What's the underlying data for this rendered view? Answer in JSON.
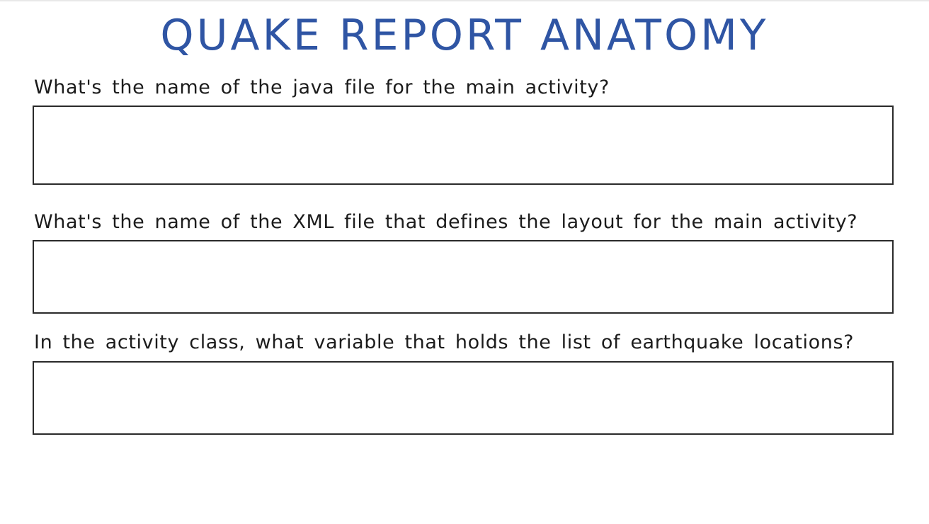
{
  "title": "QUAKE REPORT ANATOMY",
  "questions": [
    {
      "text": "What's the name of the java file for the main activity?",
      "answer": ""
    },
    {
      "text": "What's the name of the XML file that defines the layout for the main activity?",
      "answer": ""
    },
    {
      "text": "In the activity class, what variable that holds the list of earthquake locations?",
      "answer": ""
    }
  ],
  "colors": {
    "title": "#2f55a4",
    "text": "#1c1c1c",
    "box_border": "#2a2a2a",
    "background": "#ffffff"
  }
}
